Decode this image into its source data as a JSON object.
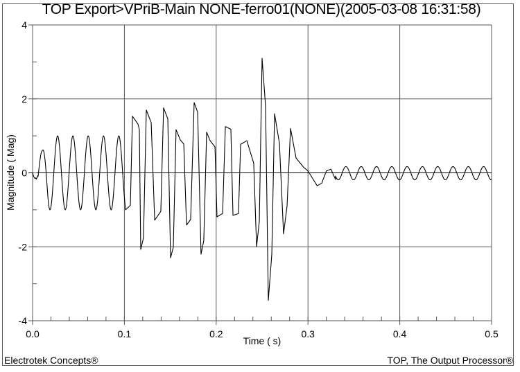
{
  "chart_data": {
    "type": "line",
    "title": "TOP Export>VPriB-Main NONE-ferro01(NONE)(2005-03-08 16:31:58)",
    "xlabel": "Time ( s)",
    "ylabel": "Magnitude ( Mag)",
    "xlim": [
      0.0,
      0.5
    ],
    "ylim": [
      -4,
      4
    ],
    "x_ticks": [
      "0.0",
      "0.1",
      "0.2",
      "0.3",
      "0.4",
      "0.5"
    ],
    "y_ticks": [
      "4",
      "2",
      "0",
      "-2",
      "-4"
    ],
    "x_minor_step": 0.02,
    "y_minor_step": 1,
    "grid": true,
    "legend": null,
    "series": [
      {
        "name": "VPriB-Main",
        "color": "#000000",
        "segments": {
          "steady_sine": {
            "t_start": 0.0,
            "t_end": 0.1,
            "frequency_hz": 60,
            "amplitude": 1.0,
            "first_peak": 0.6
          },
          "ferroresonance_points": [
            [
              0.1012,
              -1.0
            ],
            [
              0.1065,
              -0.88
            ],
            [
              0.1088,
              1.53
            ],
            [
              0.1148,
              1.32
            ],
            [
              0.1163,
              1.17
            ],
            [
              0.1178,
              -2.07
            ],
            [
              0.1208,
              -1.76
            ],
            [
              0.1239,
              1.7
            ],
            [
              0.1292,
              1.36
            ],
            [
              0.133,
              -1.28
            ],
            [
              0.1397,
              -1.04
            ],
            [
              0.1427,
              1.76
            ],
            [
              0.1473,
              1.46
            ],
            [
              0.1503,
              -2.3
            ],
            [
              0.1533,
              -2.01
            ],
            [
              0.1563,
              1.17
            ],
            [
              0.1609,
              0.89
            ],
            [
              0.1647,
              0.78
            ],
            [
              0.1677,
              -1.41
            ],
            [
              0.1722,
              -1.26
            ],
            [
              0.176,
              1.9
            ],
            [
              0.1798,
              1.64
            ],
            [
              0.1835,
              -2.2
            ],
            [
              0.1865,
              -1.83
            ],
            [
              0.1896,
              1.1
            ],
            [
              0.1934,
              0.87
            ],
            [
              0.1987,
              0.7
            ],
            [
              0.2009,
              -1.19
            ],
            [
              0.207,
              -1.1
            ],
            [
              0.21,
              1.25
            ],
            [
              0.216,
              1.18
            ],
            [
              0.2183,
              -1.15
            ],
            [
              0.2243,
              -1.1
            ],
            [
              0.2266,
              0.77
            ],
            [
              0.2334,
              0.87
            ],
            [
              0.2409,
              0.26
            ],
            [
              0.244,
              -2.0
            ],
            [
              0.247,
              -1.3
            ],
            [
              0.25,
              3.1
            ],
            [
              0.2538,
              1.8
            ],
            [
              0.2568,
              -3.45
            ],
            [
              0.2606,
              -2.2
            ],
            [
              0.2636,
              1.6
            ],
            [
              0.2689,
              0.8
            ],
            [
              0.2734,
              -1.65
            ],
            [
              0.2772,
              -0.9
            ],
            [
              0.281,
              1.2
            ],
            [
              0.287,
              0.4
            ],
            [
              0.2953,
              0.15
            ]
          ],
          "decay_points": [
            [
              0.2953,
              0.15
            ],
            [
              0.3001,
              0.05
            ],
            [
              0.305,
              -0.15
            ],
            [
              0.31,
              -0.35
            ],
            [
              0.315,
              -0.28
            ],
            [
              0.32,
              0.05
            ],
            [
              0.325,
              0.1
            ],
            [
              0.33,
              -0.18
            ]
          ],
          "tail_sine": {
            "t_start": 0.33,
            "t_end": 0.5,
            "frequency_hz": 60,
            "amplitude": 0.18,
            "offset": -0.01
          }
        }
      }
    ]
  },
  "header": {
    "title": "TOP Export>VPriB-Main NONE-ferro01(NONE)(2005-03-08 16:31:58)"
  },
  "footer": {
    "left": "Electrotek Concepts®",
    "right": "TOP, The Output Processor®"
  },
  "colors": {
    "line": "#000000",
    "grid": "#555555",
    "zero_line": "#000000",
    "frame": "#555555",
    "background": "#ffffff"
  }
}
